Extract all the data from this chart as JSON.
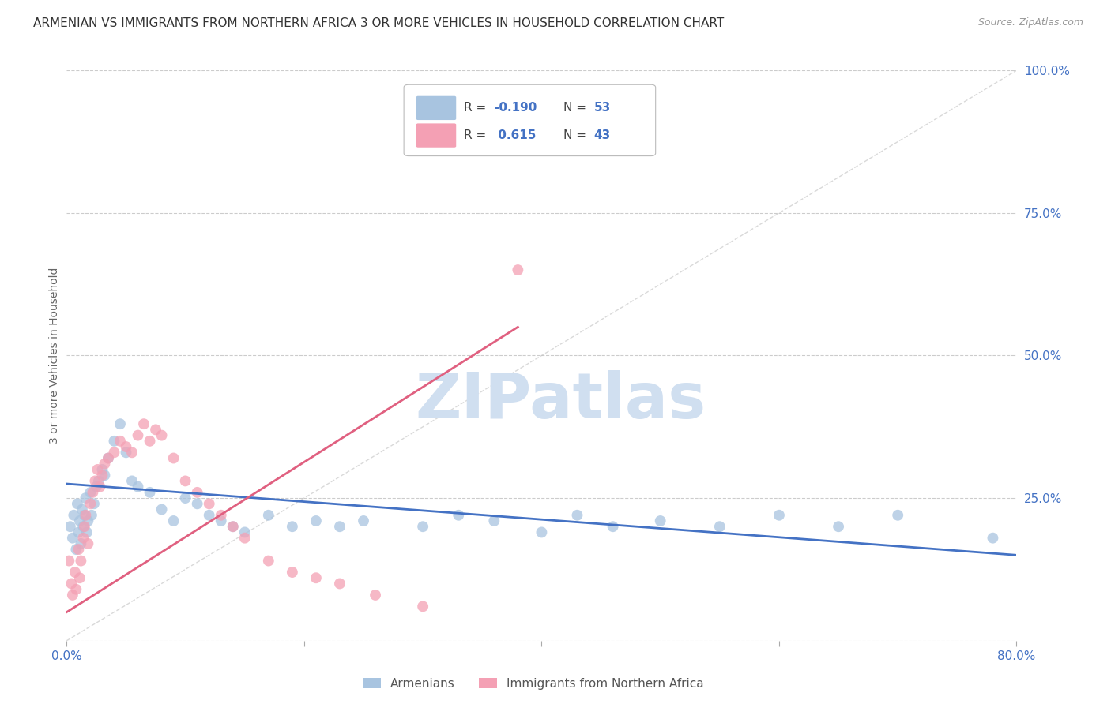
{
  "title": "ARMENIAN VS IMMIGRANTS FROM NORTHERN AFRICA 3 OR MORE VEHICLES IN HOUSEHOLD CORRELATION CHART",
  "source": "Source: ZipAtlas.com",
  "ylabel": "3 or more Vehicles in Household",
  "xmin": 0.0,
  "xmax": 80.0,
  "ymin": 0.0,
  "ymax": 100.0,
  "right_yticks": [
    0.0,
    25.0,
    50.0,
    75.0,
    100.0
  ],
  "gridline_color": "#cccccc",
  "background_color": "#ffffff",
  "armenian_color": "#a8c4e0",
  "immigrant_color": "#f4a0b4",
  "watermark": "ZIPatlas",
  "watermark_color": "#d0dff0",
  "armenian_R": -0.19,
  "armenian_N": 53,
  "immigrant_R": 0.615,
  "immigrant_N": 43,
  "legend_label_1": "Armenians",
  "legend_label_2": "Immigrants from Northern Africa",
  "armenian_scatter_x": [
    0.3,
    0.5,
    0.6,
    0.8,
    0.9,
    1.0,
    1.1,
    1.2,
    1.3,
    1.4,
    1.5,
    1.6,
    1.7,
    1.8,
    2.0,
    2.1,
    2.3,
    2.5,
    2.7,
    3.0,
    3.2,
    3.5,
    4.0,
    4.5,
    5.0,
    5.5,
    6.0,
    7.0,
    8.0,
    9.0,
    10.0,
    11.0,
    12.0,
    13.0,
    14.0,
    15.0,
    17.0,
    19.0,
    21.0,
    23.0,
    25.0,
    30.0,
    33.0,
    36.0,
    40.0,
    43.0,
    46.0,
    50.0,
    55.0,
    60.0,
    65.0,
    70.0,
    78.0
  ],
  "armenian_scatter_y": [
    20.0,
    18.0,
    22.0,
    16.0,
    24.0,
    19.0,
    21.0,
    17.0,
    23.0,
    20.0,
    22.0,
    25.0,
    19.0,
    21.0,
    26.0,
    22.0,
    24.0,
    27.0,
    28.0,
    30.0,
    29.0,
    32.0,
    35.0,
    38.0,
    33.0,
    28.0,
    27.0,
    26.0,
    23.0,
    21.0,
    25.0,
    24.0,
    22.0,
    21.0,
    20.0,
    19.0,
    22.0,
    20.0,
    21.0,
    20.0,
    21.0,
    20.0,
    22.0,
    21.0,
    19.0,
    22.0,
    20.0,
    21.0,
    20.0,
    22.0,
    20.0,
    22.0,
    18.0
  ],
  "armenian_line_x": [
    0.0,
    80.0
  ],
  "armenian_line_y": [
    27.5,
    15.0
  ],
  "immigrant_scatter_x": [
    0.2,
    0.4,
    0.5,
    0.7,
    0.8,
    1.0,
    1.1,
    1.2,
    1.4,
    1.5,
    1.6,
    1.8,
    2.0,
    2.2,
    2.4,
    2.6,
    2.8,
    3.0,
    3.2,
    3.5,
    4.0,
    4.5,
    5.0,
    5.5,
    6.0,
    6.5,
    7.0,
    7.5,
    8.0,
    9.0,
    10.0,
    11.0,
    12.0,
    13.0,
    14.0,
    15.0,
    17.0,
    19.0,
    21.0,
    23.0,
    26.0,
    30.0,
    38.0
  ],
  "immigrant_scatter_y": [
    14.0,
    10.0,
    8.0,
    12.0,
    9.0,
    16.0,
    11.0,
    14.0,
    18.0,
    20.0,
    22.0,
    17.0,
    24.0,
    26.0,
    28.0,
    30.0,
    27.0,
    29.0,
    31.0,
    32.0,
    33.0,
    35.0,
    34.0,
    33.0,
    36.0,
    38.0,
    35.0,
    37.0,
    36.0,
    32.0,
    28.0,
    26.0,
    24.0,
    22.0,
    20.0,
    18.0,
    14.0,
    12.0,
    11.0,
    10.0,
    8.0,
    6.0,
    65.0
  ],
  "immigrant_line_x": [
    0.0,
    38.0
  ],
  "immigrant_line_y": [
    5.0,
    55.0
  ],
  "blue_line_color": "#4472c4",
  "pink_line_color": "#e06080",
  "diag_line_color": "#c0c0c0",
  "title_fontsize": 11,
  "source_fontsize": 9,
  "tick_color": "#4472c4",
  "xtick_positions": [
    0,
    20,
    40,
    60,
    80
  ],
  "ytick_right_positions": [
    0.0,
    25.0,
    50.0,
    75.0,
    100.0
  ]
}
